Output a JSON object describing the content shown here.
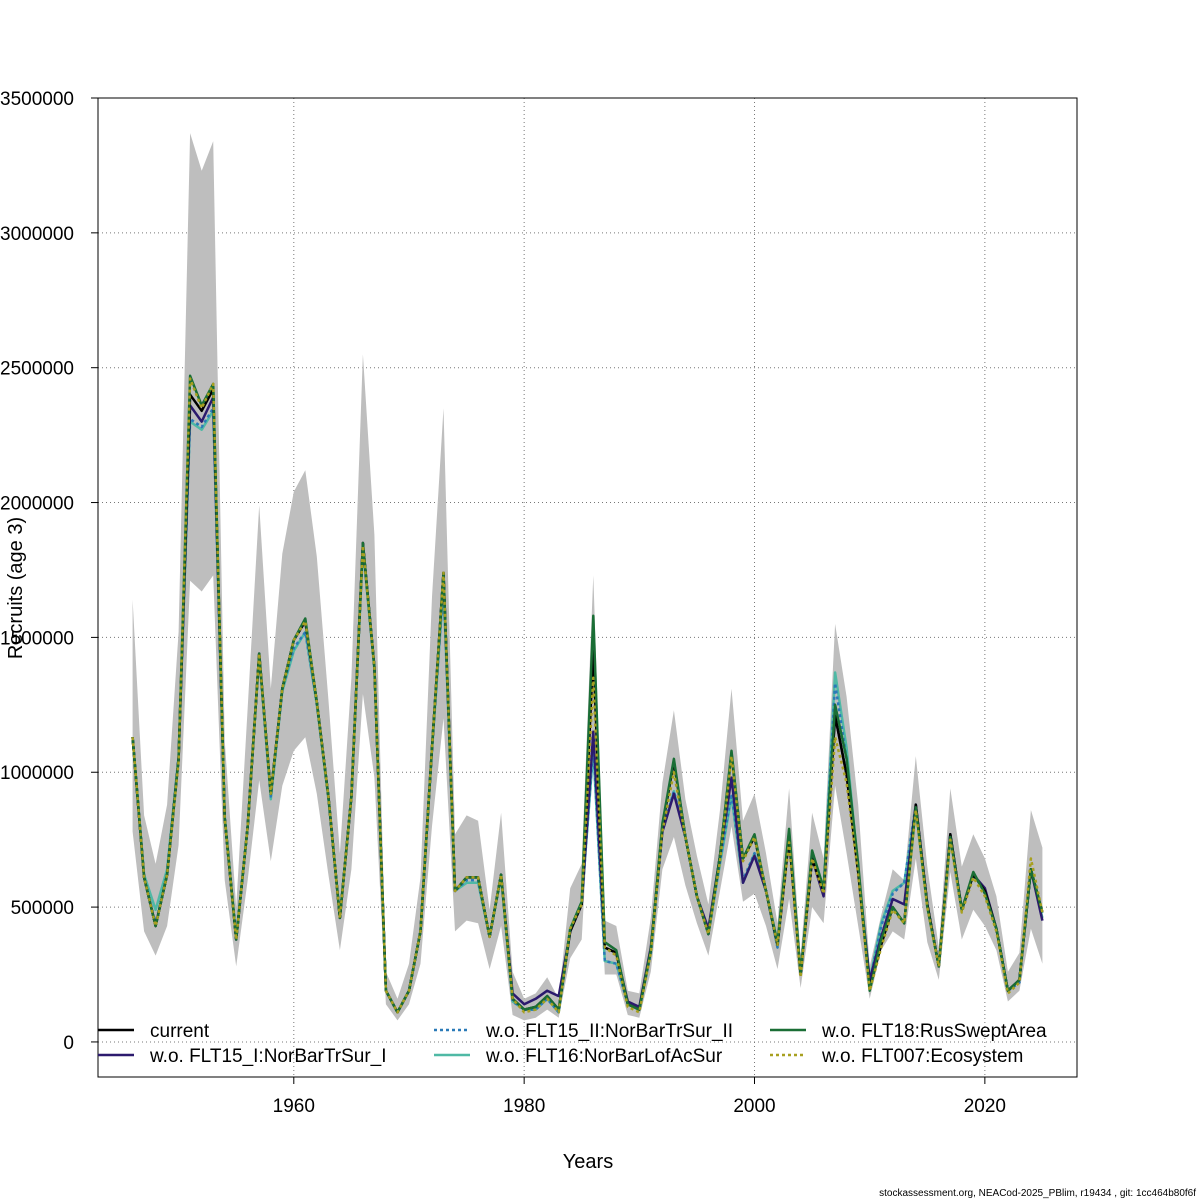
{
  "chart_data": {
    "type": "line",
    "title": "",
    "xlabel": "Years",
    "ylabel": "Recruits (age 3)",
    "xlim": [
      1943,
      2028
    ],
    "ylim": [
      -130000,
      3500000
    ],
    "grid": true,
    "x_ticks": [
      1960,
      1980,
      2000,
      2020
    ],
    "x_tick_labels": [
      "1960",
      "1980",
      "2000",
      "2020"
    ],
    "y_ticks": [
      0,
      500000,
      1000000,
      1500000,
      2000000,
      2500000,
      3000000,
      3500000
    ],
    "y_tick_labels": [
      "0",
      "500000",
      "1000000",
      "1500000",
      "2000000",
      "2500000",
      "3000000",
      "3500000"
    ],
    "legend_position": "bottom",
    "band_color": "#bebebe",
    "x": [
      1946,
      1947,
      1948,
      1949,
      1950,
      1951,
      1952,
      1953,
      1954,
      1955,
      1956,
      1957,
      1958,
      1959,
      1960,
      1961,
      1962,
      1963,
      1964,
      1965,
      1966,
      1967,
      1968,
      1969,
      1970,
      1971,
      1972,
      1973,
      1974,
      1975,
      1976,
      1977,
      1978,
      1979,
      1980,
      1981,
      1982,
      1983,
      1984,
      1985,
      1986,
      1987,
      1988,
      1989,
      1990,
      1991,
      1992,
      1993,
      1994,
      1995,
      1996,
      1997,
      1998,
      1999,
      2000,
      2001,
      2002,
      2003,
      2004,
      2005,
      2006,
      2007,
      2008,
      2009,
      2010,
      2011,
      2012,
      2013,
      2014,
      2015,
      2016,
      2017,
      2018,
      2019,
      2020,
      2021,
      2022,
      2023,
      2024,
      2025
    ],
    "band_lower": [
      780000,
      410000,
      320000,
      430000,
      730000,
      1710000,
      1670000,
      1730000,
      600000,
      280000,
      600000,
      970000,
      670000,
      950000,
      1080000,
      1130000,
      920000,
      620000,
      340000,
      640000,
      1290000,
      980000,
      140000,
      80000,
      140000,
      290000,
      800000,
      1200000,
      410000,
      450000,
      440000,
      270000,
      430000,
      100000,
      80000,
      90000,
      120000,
      90000,
      310000,
      380000,
      1150000,
      250000,
      250000,
      100000,
      90000,
      260000,
      640000,
      760000,
      580000,
      440000,
      320000,
      560000,
      800000,
      520000,
      550000,
      430000,
      270000,
      530000,
      200000,
      500000,
      440000,
      950000,
      700000,
      430000,
      160000,
      340000,
      410000,
      380000,
      680000,
      370000,
      230000,
      630000,
      380000,
      490000,
      430000,
      340000,
      150000,
      190000,
      420000,
      290000
    ],
    "band_upper": [
      1640000,
      840000,
      660000,
      880000,
      1520000,
      3370000,
      3230000,
      3340000,
      1120000,
      500000,
      1240000,
      1990000,
      1310000,
      1810000,
      2040000,
      2120000,
      1800000,
      1270000,
      700000,
      1350000,
      2550000,
      1880000,
      260000,
      160000,
      290000,
      610000,
      1650000,
      2350000,
      770000,
      840000,
      820000,
      490000,
      850000,
      260000,
      160000,
      180000,
      240000,
      160000,
      570000,
      660000,
      1730000,
      450000,
      430000,
      190000,
      180000,
      460000,
      960000,
      1230000,
      900000,
      690000,
      510000,
      860000,
      1310000,
      820000,
      920000,
      700000,
      440000,
      940000,
      320000,
      850000,
      680000,
      1550000,
      1280000,
      880000,
      280000,
      470000,
      640000,
      600000,
      1060000,
      650000,
      350000,
      940000,
      650000,
      770000,
      680000,
      540000,
      260000,
      330000,
      860000,
      720000
    ],
    "series": [
      {
        "name": "current",
        "color": "#000000",
        "dash": "",
        "values": [
          1130000,
          610000,
          430000,
          620000,
          1050000,
          2400000,
          2340000,
          2420000,
          830000,
          380000,
          800000,
          1440000,
          920000,
          1310000,
          1490000,
          1560000,
          1260000,
          910000,
          460000,
          910000,
          1850000,
          1390000,
          190000,
          110000,
          190000,
          410000,
          1090000,
          1740000,
          560000,
          610000,
          610000,
          390000,
          620000,
          160000,
          120000,
          130000,
          170000,
          120000,
          410000,
          510000,
          1450000,
          350000,
          330000,
          140000,
          120000,
          340000,
          800000,
          1040000,
          760000,
          540000,
          400000,
          690000,
          1070000,
          680000,
          760000,
          560000,
          360000,
          760000,
          250000,
          680000,
          560000,
          1210000,
          990000,
          630000,
          200000,
          360000,
          500000,
          440000,
          880000,
          510000,
          280000,
          770000,
          490000,
          620000,
          560000,
          420000,
          190000,
          230000,
          640000,
          480000
        ]
      },
      {
        "name": "w.o. FLT15_I:NorBarTrSur_I",
        "color": "#2c1a6e",
        "dash": "",
        "values": [
          1130000,
          610000,
          430000,
          620000,
          1050000,
          2360000,
          2300000,
          2390000,
          830000,
          380000,
          800000,
          1440000,
          920000,
          1310000,
          1490000,
          1560000,
          1260000,
          910000,
          460000,
          910000,
          1850000,
          1390000,
          190000,
          110000,
          190000,
          410000,
          1090000,
          1740000,
          560000,
          610000,
          610000,
          390000,
          620000,
          180000,
          140000,
          160000,
          190000,
          170000,
          410000,
          510000,
          1150000,
          350000,
          330000,
          150000,
          130000,
          350000,
          780000,
          920000,
          760000,
          540000,
          420000,
          690000,
          980000,
          590000,
          690000,
          560000,
          360000,
          760000,
          250000,
          680000,
          540000,
          1210000,
          990000,
          630000,
          230000,
          390000,
          530000,
          510000,
          880000,
          510000,
          280000,
          770000,
          490000,
          620000,
          570000,
          420000,
          190000,
          230000,
          640000,
          450000
        ]
      },
      {
        "name": "w.o. FLT15_II:NorBarTrSur_II",
        "color": "#2a7ab8",
        "dash": "3,3",
        "values": [
          1130000,
          610000,
          440000,
          620000,
          1060000,
          2310000,
          2280000,
          2350000,
          830000,
          380000,
          800000,
          1440000,
          910000,
          1310000,
          1460000,
          1520000,
          1260000,
          910000,
          460000,
          910000,
          1840000,
          1390000,
          190000,
          110000,
          190000,
          410000,
          1090000,
          1700000,
          560000,
          600000,
          600000,
          390000,
          620000,
          150000,
          120000,
          120000,
          160000,
          110000,
          410000,
          510000,
          1100000,
          300000,
          290000,
          140000,
          120000,
          330000,
          780000,
          930000,
          760000,
          540000,
          400000,
          670000,
          920000,
          600000,
          700000,
          560000,
          350000,
          760000,
          250000,
          680000,
          560000,
          1330000,
          1050000,
          630000,
          220000,
          430000,
          550000,
          590000,
          880000,
          510000,
          280000,
          760000,
          490000,
          620000,
          560000,
          420000,
          190000,
          220000,
          640000,
          480000
        ]
      },
      {
        "name": "w.o. FLT16:NorBarLofAcSur",
        "color": "#4fb9a5",
        "dash": "",
        "values": [
          1130000,
          620000,
          490000,
          640000,
          1060000,
          2300000,
          2270000,
          2340000,
          840000,
          390000,
          800000,
          1430000,
          900000,
          1300000,
          1450000,
          1520000,
          1250000,
          900000,
          470000,
          910000,
          1830000,
          1380000,
          190000,
          110000,
          190000,
          410000,
          1080000,
          1690000,
          560000,
          590000,
          590000,
          390000,
          610000,
          150000,
          120000,
          120000,
          160000,
          110000,
          420000,
          520000,
          1080000,
          300000,
          290000,
          140000,
          120000,
          330000,
          780000,
          930000,
          760000,
          540000,
          400000,
          660000,
          910000,
          590000,
          700000,
          560000,
          350000,
          780000,
          250000,
          680000,
          560000,
          1370000,
          1090000,
          640000,
          230000,
          440000,
          560000,
          590000,
          870000,
          510000,
          280000,
          770000,
          490000,
          620000,
          560000,
          420000,
          190000,
          230000,
          640000,
          460000
        ]
      },
      {
        "name": "w.o. FLT18:RusSweptArea",
        "color": "#1a6e35",
        "dash": "",
        "values": [
          1130000,
          610000,
          430000,
          620000,
          1050000,
          2470000,
          2360000,
          2440000,
          830000,
          380000,
          800000,
          1440000,
          920000,
          1310000,
          1490000,
          1570000,
          1260000,
          910000,
          460000,
          910000,
          1850000,
          1390000,
          190000,
          110000,
          190000,
          410000,
          1090000,
          1740000,
          560000,
          610000,
          610000,
          390000,
          620000,
          160000,
          120000,
          130000,
          170000,
          120000,
          420000,
          520000,
          1580000,
          370000,
          340000,
          140000,
          120000,
          340000,
          810000,
          1050000,
          760000,
          540000,
          400000,
          690000,
          1080000,
          680000,
          770000,
          560000,
          370000,
          790000,
          250000,
          710000,
          570000,
          1250000,
          1050000,
          660000,
          190000,
          380000,
          500000,
          440000,
          870000,
          500000,
          280000,
          760000,
          490000,
          630000,
          550000,
          420000,
          190000,
          230000,
          640000,
          480000
        ]
      },
      {
        "name": "w.o. FLT007:Ecosystem",
        "color": "#a8a020",
        "dash": "3,3",
        "values": [
          1130000,
          610000,
          430000,
          620000,
          1040000,
          2460000,
          2350000,
          2440000,
          830000,
          380000,
          800000,
          1440000,
          920000,
          1310000,
          1490000,
          1560000,
          1260000,
          910000,
          460000,
          910000,
          1840000,
          1390000,
          190000,
          110000,
          190000,
          410000,
          1090000,
          1740000,
          560000,
          610000,
          610000,
          390000,
          620000,
          160000,
          110000,
          120000,
          160000,
          110000,
          420000,
          510000,
          1350000,
          350000,
          320000,
          130000,
          110000,
          330000,
          780000,
          1000000,
          760000,
          540000,
          400000,
          670000,
          1060000,
          670000,
          760000,
          560000,
          360000,
          740000,
          240000,
          680000,
          550000,
          1130000,
          960000,
          620000,
          190000,
          350000,
          490000,
          440000,
          860000,
          500000,
          280000,
          750000,
          480000,
          610000,
          540000,
          410000,
          180000,
          220000,
          680000,
          480000
        ]
      }
    ]
  },
  "footer": {
    "text": "stockassessment.org, NEACod-2025_PBlim, r19434 , git: 1cc464b80f6f"
  }
}
